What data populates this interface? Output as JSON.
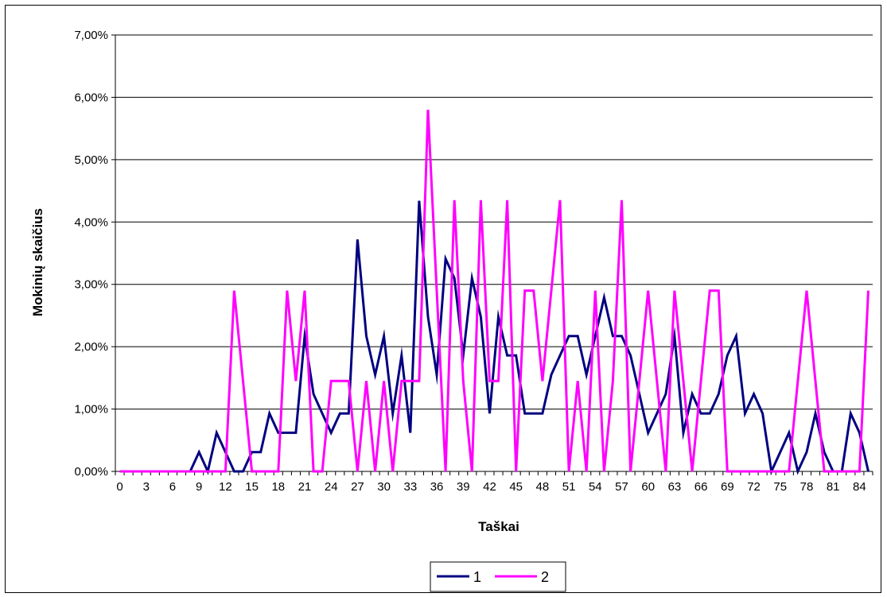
{
  "chart_data": {
    "type": "line",
    "xlabel": "Taškai",
    "ylabel": "Mokinių skaičius",
    "ylim": [
      0,
      7
    ],
    "yticks": [
      0,
      1,
      2,
      3,
      4,
      5,
      6,
      7
    ],
    "ytick_labels": [
      "0,00%",
      "1,00%",
      "2,00%",
      "3,00%",
      "4,00%",
      "5,00%",
      "6,00%",
      "7,00%"
    ],
    "x": [
      0,
      1,
      2,
      3,
      4,
      5,
      6,
      7,
      8,
      9,
      10,
      11,
      12,
      13,
      14,
      15,
      16,
      17,
      18,
      19,
      20,
      21,
      22,
      23,
      24,
      25,
      26,
      27,
      28,
      29,
      30,
      31,
      32,
      33,
      34,
      35,
      36,
      37,
      38,
      39,
      40,
      41,
      42,
      43,
      44,
      45,
      46,
      47,
      48,
      49,
      50,
      51,
      52,
      53,
      54,
      55,
      56,
      57,
      58,
      59,
      60,
      61,
      62,
      63,
      64,
      65,
      66,
      67,
      68,
      69,
      70,
      71,
      72,
      73,
      74,
      75,
      76,
      77,
      78,
      79,
      80,
      81,
      82,
      83,
      84,
      85
    ],
    "xtick_labels": [
      "0",
      "3",
      "6",
      "9",
      "12",
      "15",
      "18",
      "21",
      "24",
      "27",
      "30",
      "33",
      "36",
      "39",
      "42",
      "45",
      "48",
      "51",
      "54",
      "57",
      "60",
      "63",
      "66",
      "69",
      "72",
      "75",
      "78",
      "81",
      "84"
    ],
    "grid": "horizontal",
    "legend_position": "bottom",
    "series": [
      {
        "name": "1",
        "color": "#000080",
        "values": [
          0,
          0,
          0,
          0,
          0,
          0,
          0,
          0,
          0,
          0.31,
          0,
          0.62,
          0.31,
          0,
          0,
          0.31,
          0.31,
          0.93,
          0.62,
          0.62,
          0.62,
          2.17,
          1.24,
          0.93,
          0.62,
          0.93,
          0.93,
          3.72,
          2.17,
          1.55,
          2.17,
          0.93,
          1.86,
          0.62,
          4.34,
          2.48,
          1.55,
          3.41,
          3.1,
          1.86,
          3.1,
          2.48,
          0.93,
          2.48,
          1.86,
          1.86,
          0.93,
          0.93,
          0.93,
          1.55,
          1.86,
          2.17,
          2.17,
          1.55,
          2.17,
          2.79,
          2.17,
          2.17,
          1.86,
          1.24,
          0.62,
          0.93,
          1.24,
          2.17,
          0.62,
          1.24,
          0.93,
          0.93,
          1.24,
          1.86,
          2.17,
          0.93,
          1.24,
          0.93,
          0,
          0.31,
          0.62,
          0,
          0.31,
          0.93,
          0.31,
          0,
          0,
          0.93,
          0.62,
          0
        ]
      },
      {
        "name": "2",
        "color": "#ff00ff",
        "values": [
          0,
          0,
          0,
          0,
          0,
          0,
          0,
          0,
          0,
          0,
          0,
          0,
          0,
          2.9,
          1.45,
          0,
          0,
          0,
          0,
          2.9,
          1.45,
          2.9,
          0,
          0,
          1.45,
          1.45,
          1.45,
          0,
          1.45,
          0,
          1.45,
          0,
          1.45,
          1.45,
          1.45,
          5.8,
          2.9,
          0,
          4.35,
          1.45,
          0,
          4.35,
          1.45,
          1.45,
          4.35,
          0,
          2.9,
          2.9,
          1.45,
          2.9,
          4.35,
          0,
          1.45,
          0,
          2.9,
          0,
          1.45,
          4.35,
          0,
          1.45,
          2.9,
          1.45,
          0,
          2.9,
          1.45,
          0,
          1.45,
          2.9,
          2.9,
          0,
          0,
          0,
          0,
          0,
          0,
          0,
          0,
          1.45,
          2.9,
          1.45,
          0,
          0,
          0,
          0,
          0,
          2.9
        ]
      }
    ]
  }
}
